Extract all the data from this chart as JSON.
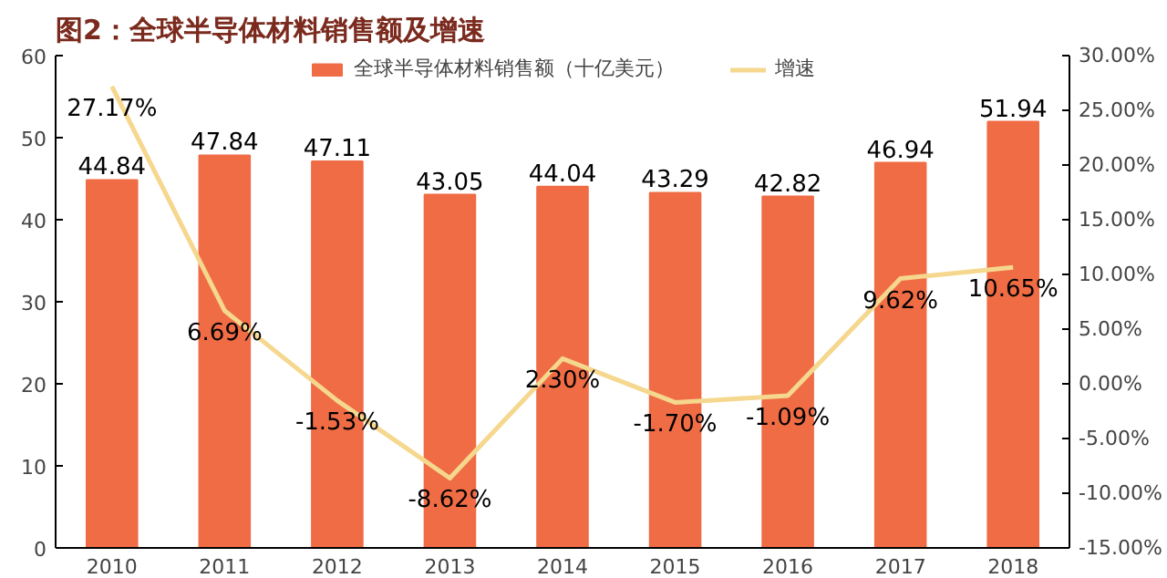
{
  "chart_data": {
    "type": "bar",
    "title": "图2：全球半导体材料销售额及增速",
    "categories": [
      "2010",
      "2011",
      "2012",
      "2013",
      "2014",
      "2015",
      "2016",
      "2017",
      "2018"
    ],
    "series": [
      {
        "name": "全球半导体材料销售额（十亿美元）",
        "color": "#ef6c45",
        "values": [
          44.84,
          47.84,
          47.11,
          43.05,
          44.04,
          43.29,
          42.82,
          46.94,
          51.94
        ],
        "value_labels": [
          "44.84",
          "47.84",
          "47.11",
          "43.05",
          "44.04",
          "43.29",
          "42.82",
          "46.94",
          "51.94"
        ]
      },
      {
        "name": "增速",
        "type": "line",
        "axis": "y2",
        "color": "#f5d78e",
        "values": [
          27.17,
          6.69,
          -1.53,
          -8.62,
          2.3,
          -1.7,
          -1.09,
          9.62,
          10.65
        ],
        "value_labels": [
          "27.17%",
          "6.69%",
          "-1.53%",
          "-8.62%",
          "2.30%",
          "-1.70%",
          "-1.09%",
          "9.62%",
          "10.65%"
        ]
      }
    ],
    "ylim": [
      0,
      60
    ],
    "yticks": [
      0,
      10,
      20,
      30,
      40,
      50,
      60
    ],
    "y2lim": [
      -15,
      30
    ],
    "y2ticks": [
      {
        "value": 30,
        "label": "30.00%"
      },
      {
        "value": 25,
        "label": "25.00%"
      },
      {
        "value": 20,
        "label": "20.00%"
      },
      {
        "value": 15,
        "label": "15.00%"
      },
      {
        "value": 10,
        "label": "10.00%"
      },
      {
        "value": 5,
        "label": "5.00%"
      },
      {
        "value": 0,
        "label": "0.00%"
      },
      {
        "value": -5,
        "label": "-5.00%"
      },
      {
        "value": -10,
        "label": "-10.00%"
      },
      {
        "value": -15,
        "label": "-15.00%"
      }
    ],
    "legend": "top",
    "grid": false,
    "marker": "none",
    "line_style": "solid"
  }
}
